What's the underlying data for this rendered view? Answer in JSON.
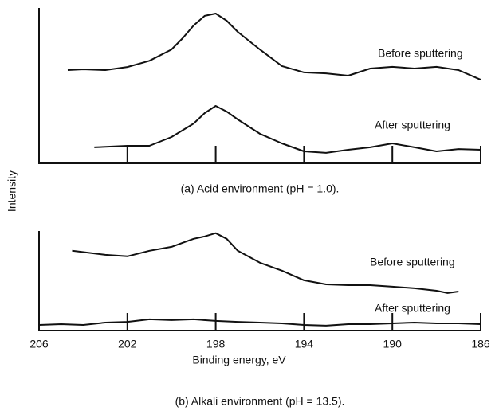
{
  "chart_data": [
    {
      "type": "line",
      "ylabel": "Intensity",
      "caption": "(a) Acid environment (pH = 1.0).",
      "xlim": [
        206,
        186
      ],
      "ylim": [
        0,
        10
      ],
      "series": [
        {
          "name": "Before sputtering",
          "color": "#111111",
          "x": [
            204.7,
            204,
            203,
            202,
            201,
            200,
            199.5,
            199,
            198.5,
            198,
            197.5,
            197,
            196,
            195,
            194,
            193,
            192,
            191,
            190,
            189,
            188,
            187,
            186
          ],
          "values": [
            6.0,
            6.05,
            6.0,
            6.2,
            6.6,
            7.33,
            8.05,
            8.87,
            9.49,
            9.64,
            9.18,
            8.46,
            7.33,
            6.26,
            5.85,
            5.79,
            5.64,
            6.1,
            6.21,
            6.1,
            6.21,
            6.0,
            5.38
          ]
        },
        {
          "name": "After sputtering",
          "color": "#111111",
          "x": [
            203.5,
            202,
            201,
            200,
            199,
            198.5,
            198,
            197.5,
            197,
            196,
            195,
            194,
            193,
            192,
            191,
            190,
            189,
            188,
            187,
            186
          ],
          "values": [
            1.03,
            1.13,
            1.13,
            1.69,
            2.56,
            3.23,
            3.69,
            3.33,
            2.82,
            1.9,
            1.28,
            0.77,
            0.67,
            0.87,
            1.03,
            1.28,
            1.03,
            0.77,
            0.92,
            0.87
          ]
        }
      ]
    },
    {
      "type": "line",
      "xlabel": "Binding energy, eV",
      "caption": "(b) Alkali environment (pH = 13.5).",
      "xlim": [
        206,
        186
      ],
      "ylim": [
        0,
        6.4
      ],
      "xticks": [
        206,
        202,
        198,
        194,
        190,
        186
      ],
      "series": [
        {
          "name": "Before sputtering",
          "color": "#111111",
          "x": [
            204.5,
            203,
            202,
            201,
            200,
            199.5,
            199,
            198.5,
            198,
            197.5,
            197,
            196,
            195,
            194,
            193,
            192,
            191,
            190,
            189,
            188,
            187.5,
            187
          ],
          "values": [
            5.13,
            4.87,
            4.77,
            5.13,
            5.38,
            5.64,
            5.9,
            6.05,
            6.26,
            5.9,
            5.13,
            4.36,
            3.85,
            3.23,
            2.97,
            2.92,
            2.92,
            2.82,
            2.72,
            2.56,
            2.41,
            2.51
          ]
        },
        {
          "name": "After sputtering",
          "color": "#111111",
          "x": [
            206,
            205,
            204,
            203,
            202,
            201,
            200,
            199,
            198,
            197,
            196,
            195,
            194,
            193,
            192,
            191,
            190,
            189,
            188,
            187,
            186
          ],
          "values": [
            0.36,
            0.41,
            0.36,
            0.51,
            0.56,
            0.72,
            0.67,
            0.72,
            0.62,
            0.56,
            0.51,
            0.46,
            0.36,
            0.31,
            0.41,
            0.41,
            0.46,
            0.51,
            0.46,
            0.46,
            0.41
          ]
        }
      ]
    }
  ]
}
